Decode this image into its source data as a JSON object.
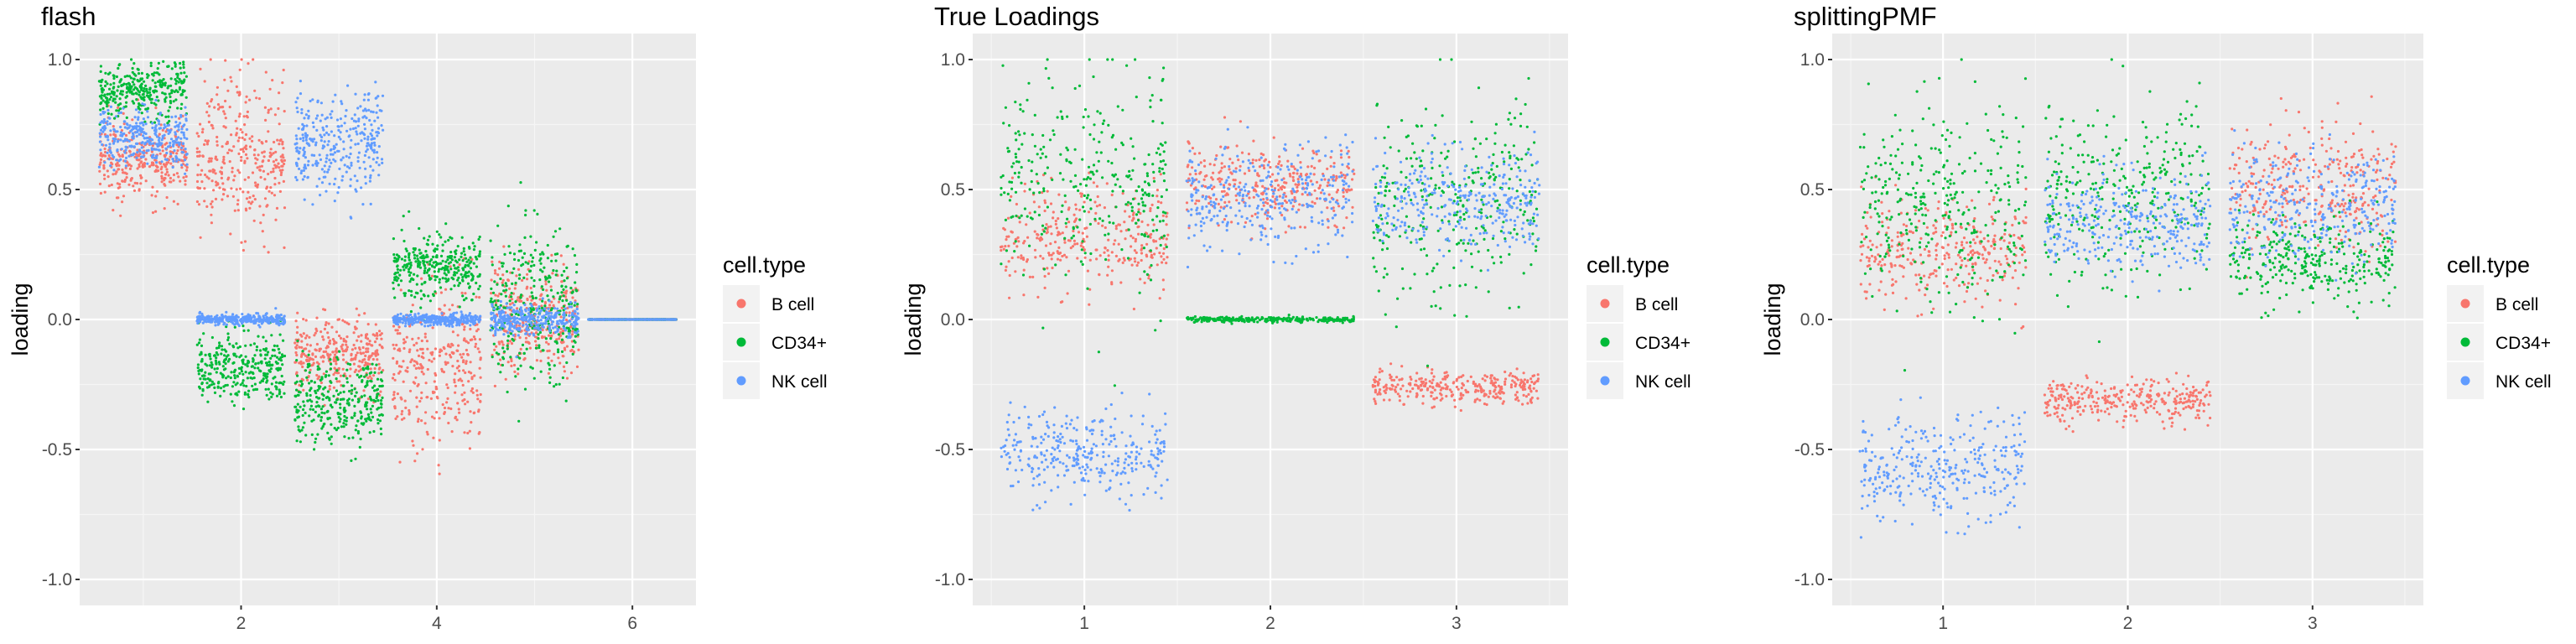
{
  "colors": {
    "B cell": "#F8766D",
    "CD34+": "#00BA38",
    "NK cell": "#619CFF"
  },
  "chart_data": [
    {
      "type": "scatter",
      "title": "flash",
      "ylabel": "loading",
      "xlabel": "",
      "ylim": [
        -1.1,
        1.1
      ],
      "y_ticks": [
        "1.0",
        "0.5",
        "0.0",
        "-0.5",
        "-1.0"
      ],
      "x_ticks": [
        "2",
        "4",
        "6"
      ],
      "x_tick_values": [
        2,
        4,
        6
      ],
      "xlim": [
        0.35,
        6.65
      ],
      "legend": {
        "title": "cell.type",
        "items": [
          "B cell",
          "CD34+",
          "NK cell"
        ],
        "position": "right"
      },
      "jitter_width": 0.45,
      "series": [
        {
          "name": "B cell",
          "clusters": [
            {
              "x": 1,
              "mean": 0.62,
              "sd": 0.07
            },
            {
              "x": 2,
              "mean": 0.62,
              "sd": 0.15
            },
            {
              "x": 3,
              "mean": -0.14,
              "sd": 0.07
            },
            {
              "x": 4,
              "mean": -0.18,
              "sd": 0.15
            },
            {
              "x": 5,
              "mean": 0.0,
              "sd": 0.1
            },
            {
              "x": 6,
              "mean": 0.0,
              "sd": 0.0
            }
          ]
        },
        {
          "name": "CD34+",
          "clusters": [
            {
              "x": 1,
              "mean": 0.88,
              "sd": 0.05
            },
            {
              "x": 2,
              "mean": -0.18,
              "sd": 0.07
            },
            {
              "x": 3,
              "mean": -0.32,
              "sd": 0.08
            },
            {
              "x": 4,
              "mean": 0.2,
              "sd": 0.06
            },
            {
              "x": 5,
              "mean": 0.05,
              "sd": 0.15
            },
            {
              "x": 6,
              "mean": 0.0,
              "sd": 0.0
            }
          ]
        },
        {
          "name": "NK cell",
          "clusters": [
            {
              "x": 1,
              "mean": 0.7,
              "sd": 0.05
            },
            {
              "x": 2,
              "mean": 0.0,
              "sd": 0.01
            },
            {
              "x": 3,
              "mean": 0.67,
              "sd": 0.1
            },
            {
              "x": 4,
              "mean": 0.0,
              "sd": 0.01
            },
            {
              "x": 5,
              "mean": 0.0,
              "sd": 0.03
            },
            {
              "x": 6,
              "mean": 0.0,
              "sd": 0.0
            }
          ]
        }
      ]
    },
    {
      "type": "scatter",
      "title": "True Loadings",
      "ylabel": "loading",
      "xlabel": "",
      "ylim": [
        -1.1,
        1.1
      ],
      "y_ticks": [
        "1.0",
        "0.5",
        "0.0",
        "-0.5",
        "-1.0"
      ],
      "x_ticks": [
        "1",
        "2",
        "3"
      ],
      "x_tick_values": [
        1,
        2,
        3
      ],
      "xlim": [
        0.4,
        3.6
      ],
      "legend": {
        "title": "cell.type",
        "items": [
          "B cell",
          "CD34+",
          "NK cell"
        ],
        "position": "right"
      },
      "jitter_width": 0.45,
      "series": [
        {
          "name": "B cell",
          "clusters": [
            {
              "x": 1,
              "mean": 0.32,
              "sd": 0.1
            },
            {
              "x": 2,
              "mean": 0.52,
              "sd": 0.08
            },
            {
              "x": 3,
              "mean": -0.26,
              "sd": 0.03
            }
          ]
        },
        {
          "name": "CD34+",
          "clusters": [
            {
              "x": 1,
              "mean": 0.55,
              "sd": 0.2
            },
            {
              "x": 2,
              "mean": 0.0,
              "sd": 0.005
            },
            {
              "x": 3,
              "mean": 0.45,
              "sd": 0.2
            }
          ]
        },
        {
          "name": "NK cell",
          "clusters": [
            {
              "x": 1,
              "mean": -0.52,
              "sd": 0.08
            },
            {
              "x": 2,
              "mean": 0.46,
              "sd": 0.1
            },
            {
              "x": 3,
              "mean": 0.46,
              "sd": 0.1
            }
          ]
        }
      ]
    },
    {
      "type": "scatter",
      "title": "splittingPMF",
      "ylabel": "loading",
      "xlabel": "",
      "ylim": [
        -1.1,
        1.1
      ],
      "y_ticks": [
        "1.0",
        "0.5",
        "0.0",
        "-0.5",
        "-1.0"
      ],
      "x_ticks": [
        "1",
        "2",
        "3"
      ],
      "x_tick_values": [
        1,
        2,
        3
      ],
      "xlim": [
        0.4,
        3.6
      ],
      "legend": {
        "title": "cell.type",
        "items": [
          "B cell",
          "CD34+",
          "NK cell"
        ],
        "position": "right"
      },
      "jitter_width": 0.45,
      "series": [
        {
          "name": "B cell",
          "clusters": [
            {
              "x": 1,
              "mean": 0.25,
              "sd": 0.1
            },
            {
              "x": 2,
              "mean": -0.31,
              "sd": 0.04
            },
            {
              "x": 3,
              "mean": 0.52,
              "sd": 0.12
            }
          ]
        },
        {
          "name": "CD34+",
          "clusters": [
            {
              "x": 1,
              "mean": 0.45,
              "sd": 0.2
            },
            {
              "x": 2,
              "mean": 0.48,
              "sd": 0.18
            },
            {
              "x": 3,
              "mean": 0.22,
              "sd": 0.08
            }
          ]
        },
        {
          "name": "NK cell",
          "clusters": [
            {
              "x": 1,
              "mean": -0.58,
              "sd": 0.1
            },
            {
              "x": 2,
              "mean": 0.38,
              "sd": 0.1
            },
            {
              "x": 3,
              "mean": 0.43,
              "sd": 0.1
            }
          ]
        }
      ]
    }
  ]
}
